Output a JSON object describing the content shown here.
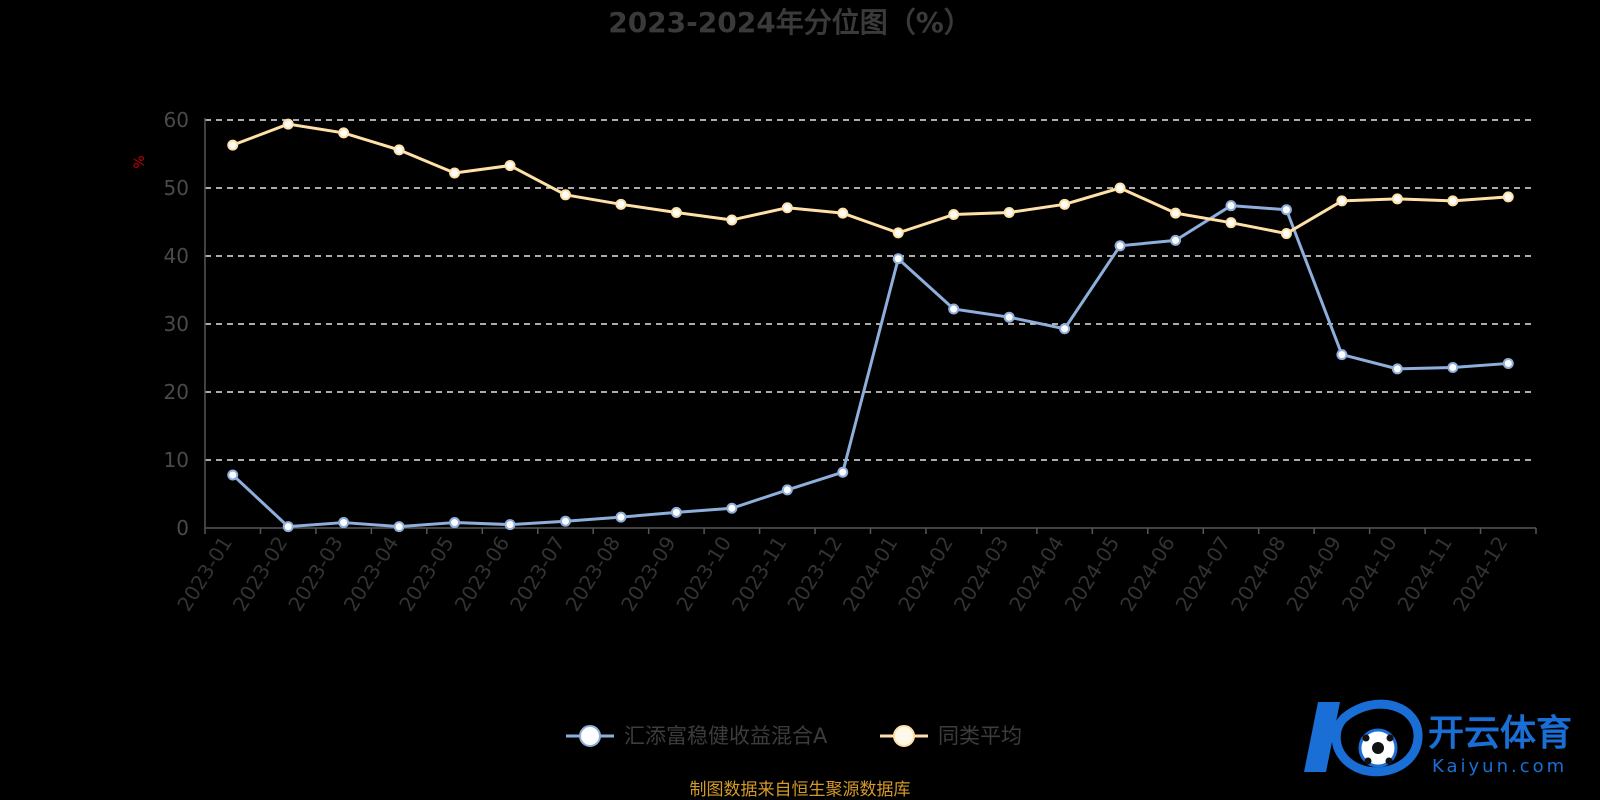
{
  "chart_data": {
    "type": "line",
    "title": "2023-2024年分位图（%）",
    "ylabel": "%",
    "ylim": [
      0,
      60
    ],
    "yticks": [
      0,
      10,
      20,
      30,
      40,
      50,
      60
    ],
    "grid": true,
    "legend_position": "bottom",
    "categories": [
      "2023-01",
      "2023-02",
      "2023-03",
      "2023-04",
      "2023-05",
      "2023-06",
      "2023-07",
      "2023-08",
      "2023-09",
      "2023-10",
      "2023-11",
      "2023-12",
      "2024-01",
      "2024-02",
      "2024-03",
      "2024-04",
      "2024-05",
      "2024-06",
      "2024-07",
      "2024-08",
      "2024-09",
      "2024-10",
      "2024-11",
      "2024-12"
    ],
    "series": [
      {
        "name": "汇添富稳健收益混合A",
        "color": "#8eaedb",
        "values": [
          7.8,
          0.2,
          0.8,
          0.2,
          0.8,
          0.5,
          1.0,
          1.6,
          2.3,
          2.9,
          5.6,
          8.2,
          39.6,
          32.2,
          31.0,
          29.3,
          41.5,
          42.3,
          47.4,
          46.8,
          25.5,
          23.4,
          23.6,
          24.2
        ]
      },
      {
        "name": "同类平均",
        "color": "#ffe1a8",
        "values": [
          56.3,
          59.4,
          58.1,
          55.6,
          52.2,
          53.3,
          49.0,
          47.6,
          46.4,
          45.3,
          47.1,
          46.3,
          43.4,
          46.1,
          46.4,
          47.6,
          50.0,
          46.3,
          44.9,
          43.3,
          48.1,
          48.4,
          48.1,
          48.7
        ]
      }
    ]
  },
  "footer": {
    "source": "制图数据来自恒生聚源数据库"
  },
  "watermark": {
    "cn": "开云体育",
    "en": "Kaiyun.com",
    "color": "#1a6fd6"
  }
}
